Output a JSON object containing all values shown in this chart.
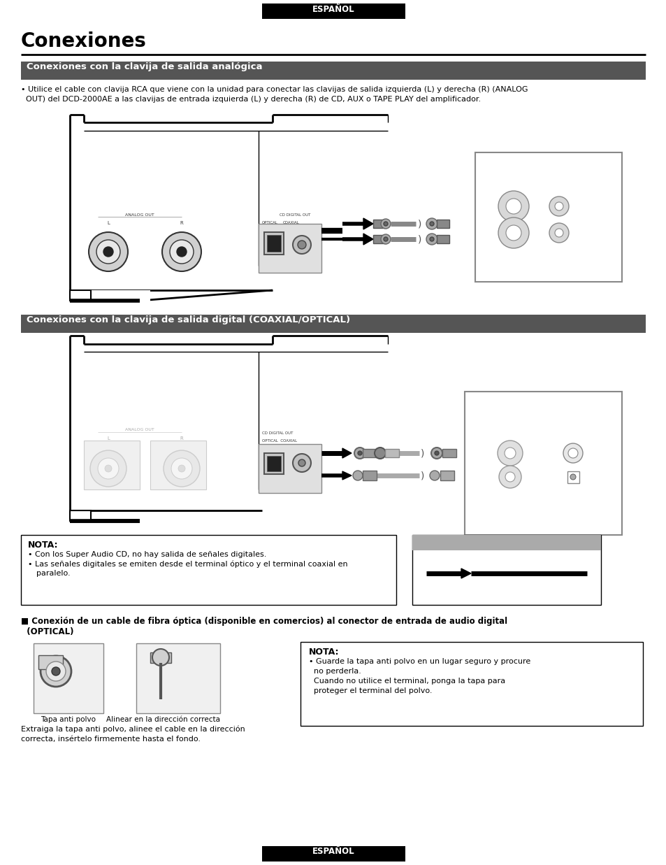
{
  "page_bg": "#ffffff",
  "top_label": "ESPAÑOL",
  "bottom_label": "ESPAÑOL",
  "title": "Conexiones",
  "section1_text": "Conexiones con la clavija de salida analógica",
  "section1_body_line1": "• Utilice el cable con clavija RCA que viene con la unidad para conectar las clavijas de salida izquierda (L) y derecha (R) (ANALOG",
  "section1_body_line2": "  OUT) del DCD-2000AE a las clavijas de entrada izquierda (L) y derecha (R) de CD, AUX o TAPE PLAY del amplificador.",
  "section2_text": "Conexiones con la clavija de salida digital (COAXIAL/OPTICAL)",
  "nota1_title": "NOTA:",
  "nota1_b1": "Con los Super Audio CD, no hay salida de señales digitales.",
  "nota1_b2": "Las señales digitales se emiten desde el terminal óptico y el terminal coaxial en",
  "nota1_b2c": "paralelo.",
  "section3_line1": "■ Conexión de un cable de fibra óptica (disponible en comercios) al conector de entrada de audio digital",
  "section3_line2": "  (OPTICAL)",
  "img1_caption": "Tapa anti polvo",
  "img2_caption": "Alinear en la dirección correcta",
  "img_body_line1": "Extraiga la tapa anti polvo, alinee el cable en la dirección",
  "img_body_line2": "correcta, insértelo firmemente hasta el fondo.",
  "nota2_title": "NOTA:",
  "nota2_b1": "• Guarde la tapa anti polvo en un lugar seguro y procure",
  "nota2_b1c": "  no perderla.",
  "nota2_b2": "  Cuando no utilice el terminal, ponga la tapa para",
  "nota2_b2c": "  proteger el terminal del polvo.",
  "section_bg": "#555555",
  "body_text_color": "#000000"
}
